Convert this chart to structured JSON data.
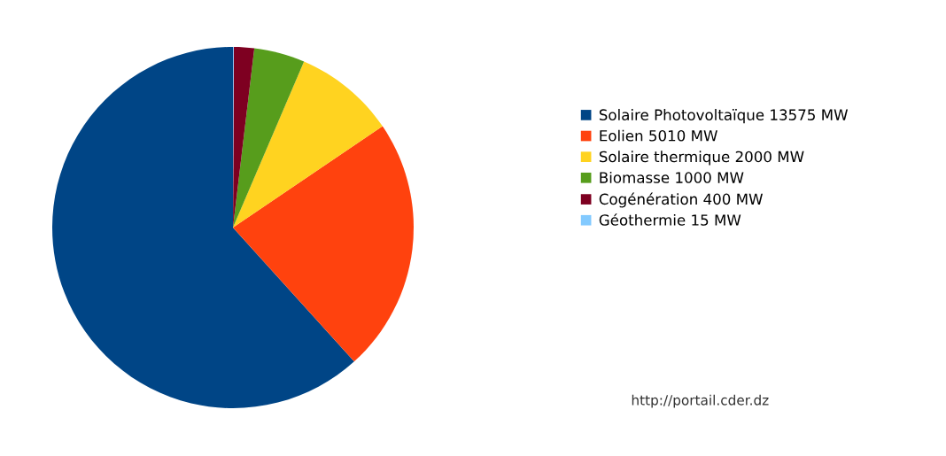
{
  "chart_data": {
    "type": "pie",
    "categories": [
      "Solaire Photovoltaïque 13575 MW",
      "Eolien 5010 MW",
      "Solaire thermique 2000 MW",
      "Biomasse 1000 MW",
      "Cogénération 400 MW",
      "Géothermie 15 MW"
    ],
    "values": [
      13575,
      5010,
      2000,
      1000,
      400,
      15
    ],
    "colors": [
      "#004586",
      "#ff420e",
      "#ffd320",
      "#579d1c",
      "#7e0021",
      "#83caff"
    ],
    "legend": "right",
    "annotations": [
      "http://portail.cder.dz"
    ]
  }
}
